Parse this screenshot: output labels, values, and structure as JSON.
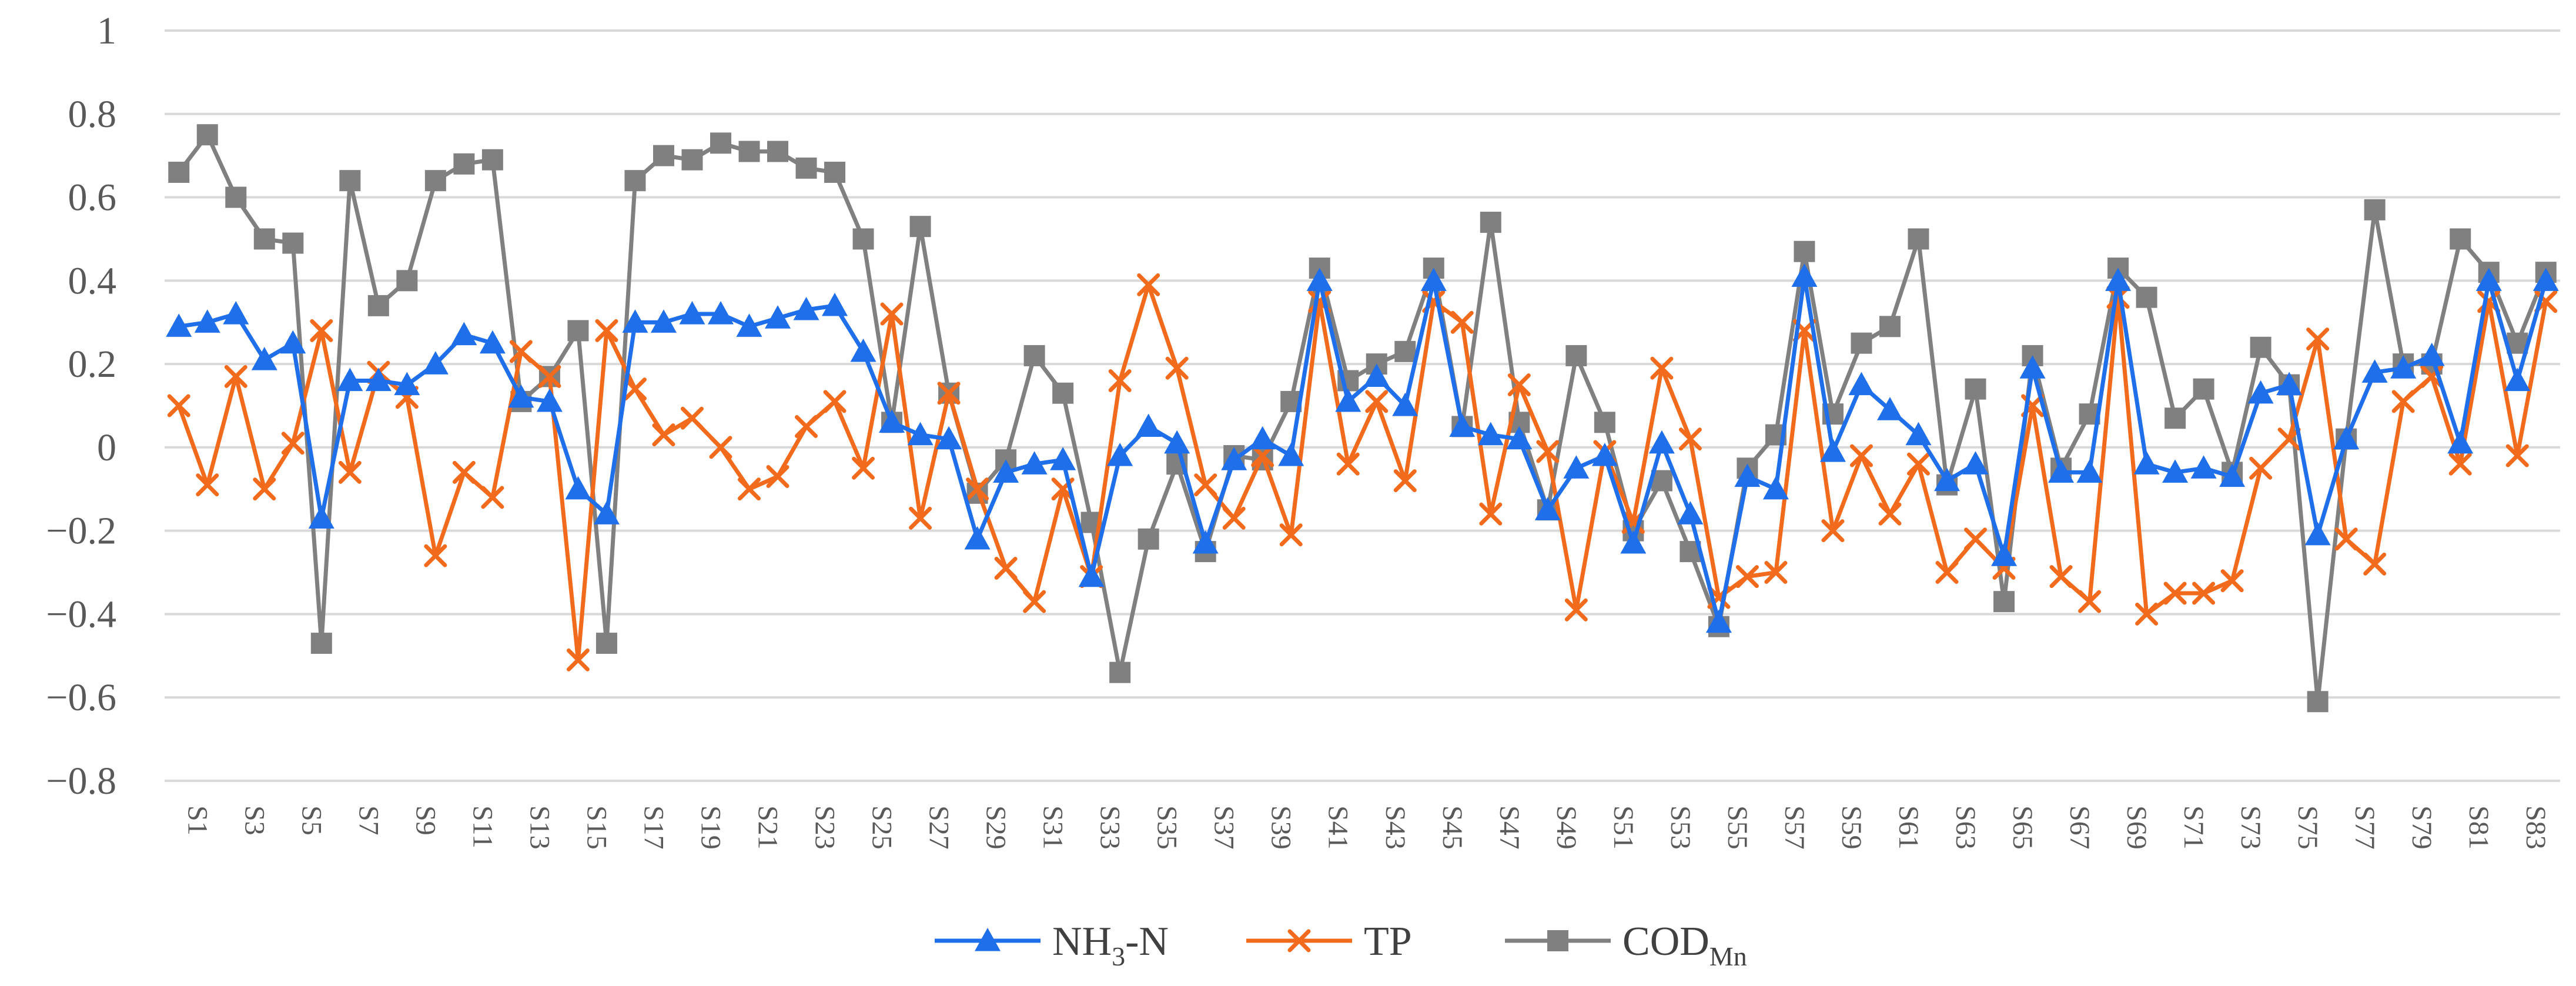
{
  "chart_data": {
    "type": "line",
    "title": "",
    "xlabel": "",
    "ylabel": "",
    "ylim": [
      -0.8,
      1
    ],
    "yticks": [
      1,
      0.8,
      0.6,
      0.4,
      0.2,
      0,
      -0.2,
      -0.4,
      -0.6,
      -0.8
    ],
    "ytick_labels": [
      "1",
      "0.8",
      "0.6",
      "0.4",
      "0.2",
      "0",
      "−0.2",
      "−0.4",
      "−0.6",
      "−0.8"
    ],
    "grid": true,
    "legend_position": "bottom",
    "categories": [
      "S1",
      "S2",
      "S3",
      "S4",
      "S5",
      "S6",
      "S7",
      "S8",
      "S9",
      "S10",
      "S11",
      "S12",
      "S13",
      "S14",
      "S15",
      "S16",
      "S17",
      "S18",
      "S19",
      "S20",
      "S21",
      "S22",
      "S23",
      "S24",
      "S25",
      "S26",
      "S27",
      "S28",
      "S29",
      "S30",
      "S31",
      "S32",
      "S33",
      "S34",
      "S35",
      "S36",
      "S37",
      "S38",
      "S39",
      "S40",
      "S41",
      "S42",
      "S43",
      "S44",
      "S45",
      "S46",
      "S47",
      "S48",
      "S49",
      "S50",
      "S51",
      "S52",
      "S53",
      "S54",
      "S55",
      "S56",
      "S57",
      "S58",
      "S59",
      "S60",
      "S61",
      "S62",
      "S63",
      "S64",
      "S65",
      "S66",
      "S67",
      "S68",
      "S69",
      "S70",
      "S71",
      "S72",
      "S73",
      "S74",
      "S75",
      "S76",
      "S77",
      "S78",
      "S79",
      "S80",
      "S81",
      "S82",
      "S83",
      "S84"
    ],
    "xtick_labels": [
      "S1",
      "S3",
      "S5",
      "S7",
      "S9",
      "S11",
      "S13",
      "S15",
      "S17",
      "S19",
      "S21",
      "S23",
      "S25",
      "S27",
      "S29",
      "S31",
      "S33",
      "S35",
      "S37",
      "S39",
      "S41",
      "S43",
      "S45",
      "S47",
      "S49",
      "S51",
      "S53",
      "S55",
      "S57",
      "S59",
      "S61",
      "S63",
      "S65",
      "S67",
      "S69",
      "S71",
      "S73",
      "S75",
      "S77",
      "S79",
      "S81",
      "S83"
    ],
    "series": [
      {
        "name": "NH3-N",
        "legend_main": "NH",
        "legend_sub": "3",
        "legend_suffix": "-N",
        "color": "#1F6FEB",
        "marker": "triangle",
        "values": [
          0.29,
          0.3,
          0.32,
          0.21,
          0.25,
          -0.17,
          0.16,
          0.16,
          0.15,
          0.2,
          0.27,
          0.25,
          0.12,
          0.11,
          -0.1,
          -0.16,
          0.3,
          0.3,
          0.32,
          0.32,
          0.29,
          0.31,
          0.33,
          0.34,
          0.23,
          0.06,
          0.03,
          0.02,
          -0.22,
          -0.06,
          -0.04,
          -0.03,
          -0.31,
          -0.02,
          0.05,
          0.01,
          -0.23,
          -0.03,
          0.02,
          -0.02,
          0.4,
          0.11,
          0.17,
          0.1,
          0.4,
          0.05,
          0.03,
          0.02,
          -0.15,
          -0.05,
          -0.02,
          -0.23,
          0.01,
          -0.16,
          -0.42,
          -0.07,
          -0.1,
          0.41,
          -0.01,
          0.15,
          0.09,
          0.03,
          -0.08,
          -0.04,
          -0.26,
          0.19,
          -0.06,
          -0.06,
          0.4,
          -0.04,
          -0.06,
          -0.05,
          -0.07,
          0.13,
          0.15,
          -0.21,
          0.02,
          0.18,
          0.19,
          0.22,
          0.01,
          0.4,
          0.16,
          0.4
        ]
      },
      {
        "name": "TP",
        "legend_main": "TP",
        "legend_sub": "",
        "legend_suffix": "",
        "color": "#F26B1D",
        "marker": "x",
        "values": [
          0.1,
          -0.09,
          0.17,
          -0.1,
          0.01,
          0.28,
          -0.06,
          0.18,
          0.12,
          -0.26,
          -0.06,
          -0.12,
          0.23,
          0.17,
          -0.51,
          0.28,
          0.14,
          0.03,
          0.07,
          0.0,
          -0.1,
          -0.07,
          0.05,
          0.11,
          -0.05,
          0.32,
          -0.17,
          0.13,
          -0.1,
          -0.29,
          -0.37,
          -0.1,
          -0.31,
          0.16,
          0.39,
          0.19,
          -0.09,
          -0.17,
          -0.02,
          -0.21,
          0.35,
          -0.04,
          0.11,
          -0.08,
          0.35,
          0.3,
          -0.16,
          0.15,
          -0.01,
          -0.39,
          -0.01,
          -0.18,
          0.19,
          0.02,
          -0.36,
          -0.31,
          -0.3,
          0.28,
          -0.2,
          -0.02,
          -0.16,
          -0.04,
          -0.3,
          -0.22,
          -0.29,
          0.1,
          -0.31,
          -0.37,
          0.36,
          -0.4,
          -0.35,
          -0.35,
          -0.32,
          -0.05,
          0.02,
          0.26,
          -0.22,
          -0.28,
          0.11,
          0.17,
          -0.04,
          0.35,
          -0.02,
          0.35
        ]
      },
      {
        "name": "CODMn",
        "legend_main": "COD",
        "legend_sub": "Mn",
        "legend_suffix": "",
        "color": "#808080",
        "marker": "square",
        "values": [
          0.66,
          0.75,
          0.6,
          0.5,
          0.49,
          -0.47,
          0.64,
          0.34,
          0.4,
          0.64,
          0.68,
          0.69,
          0.11,
          0.17,
          0.28,
          -0.47,
          0.64,
          0.7,
          0.69,
          0.73,
          0.71,
          0.71,
          0.67,
          0.66,
          0.5,
          0.06,
          0.53,
          0.13,
          -0.11,
          -0.03,
          0.22,
          0.13,
          -0.18,
          -0.54,
          -0.22,
          -0.04,
          -0.25,
          -0.02,
          -0.03,
          0.11,
          0.43,
          0.16,
          0.2,
          0.23,
          0.43,
          0.05,
          0.54,
          0.06,
          -0.15,
          0.22,
          0.06,
          -0.2,
          -0.08,
          -0.25,
          -0.43,
          -0.05,
          0.03,
          0.47,
          0.08,
          0.25,
          0.29,
          0.5,
          -0.09,
          0.14,
          -0.37,
          0.22,
          -0.05,
          0.08,
          0.43,
          0.36,
          0.07,
          0.14,
          -0.06,
          0.24,
          0.15,
          -0.61,
          0.02,
          0.57,
          0.2,
          0.2,
          0.5,
          0.42,
          0.25,
          0.42
        ]
      }
    ]
  }
}
